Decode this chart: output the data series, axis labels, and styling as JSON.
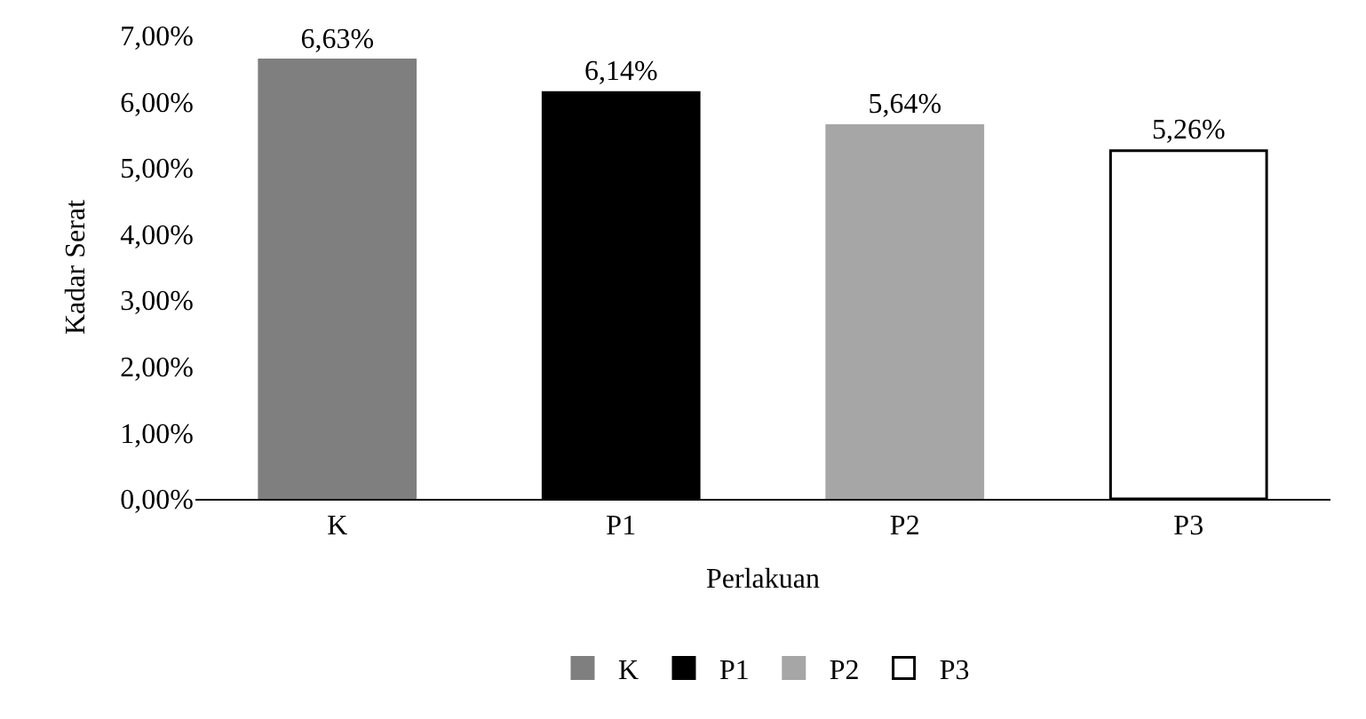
{
  "chart_data": {
    "type": "bar",
    "xlabel": "Perlakuan",
    "ylabel": "Kadar Serat",
    "categories": [
      "K",
      "P1",
      "P2",
      "P3"
    ],
    "series": [
      {
        "name": "K",
        "color": "#7f7f7f",
        "values": [
          6.63,
          null,
          null,
          null
        ],
        "value_labels": [
          "6,63%",
          null,
          null,
          null
        ]
      },
      {
        "name": "P1",
        "color": "#000000",
        "values": [
          null,
          6.14,
          null,
          null
        ],
        "value_labels": [
          null,
          "6,14%",
          null,
          null
        ]
      },
      {
        "name": "P2",
        "color": "#a6a6a6",
        "values": [
          null,
          null,
          5.64,
          null
        ],
        "value_labels": [
          null,
          null,
          "5,64%",
          null
        ]
      },
      {
        "name": "P3",
        "color": "#ffffff",
        "values": [
          null,
          null,
          null,
          5.26
        ],
        "value_labels": [
          null,
          null,
          null,
          "5,26%"
        ]
      }
    ],
    "ylim": [
      0,
      7
    ],
    "yticks": [
      {
        "value": 0,
        "label": "0,00%"
      },
      {
        "value": 1,
        "label": "1,00%"
      },
      {
        "value": 2,
        "label": "2,00%"
      },
      {
        "value": 3,
        "label": "3,00%"
      },
      {
        "value": 4,
        "label": "4,00%"
      },
      {
        "value": 5,
        "label": "5,00%"
      },
      {
        "value": 6,
        "label": "6,00%"
      },
      {
        "value": 7,
        "label": "7,00%"
      }
    ],
    "legend": "bottom"
  }
}
